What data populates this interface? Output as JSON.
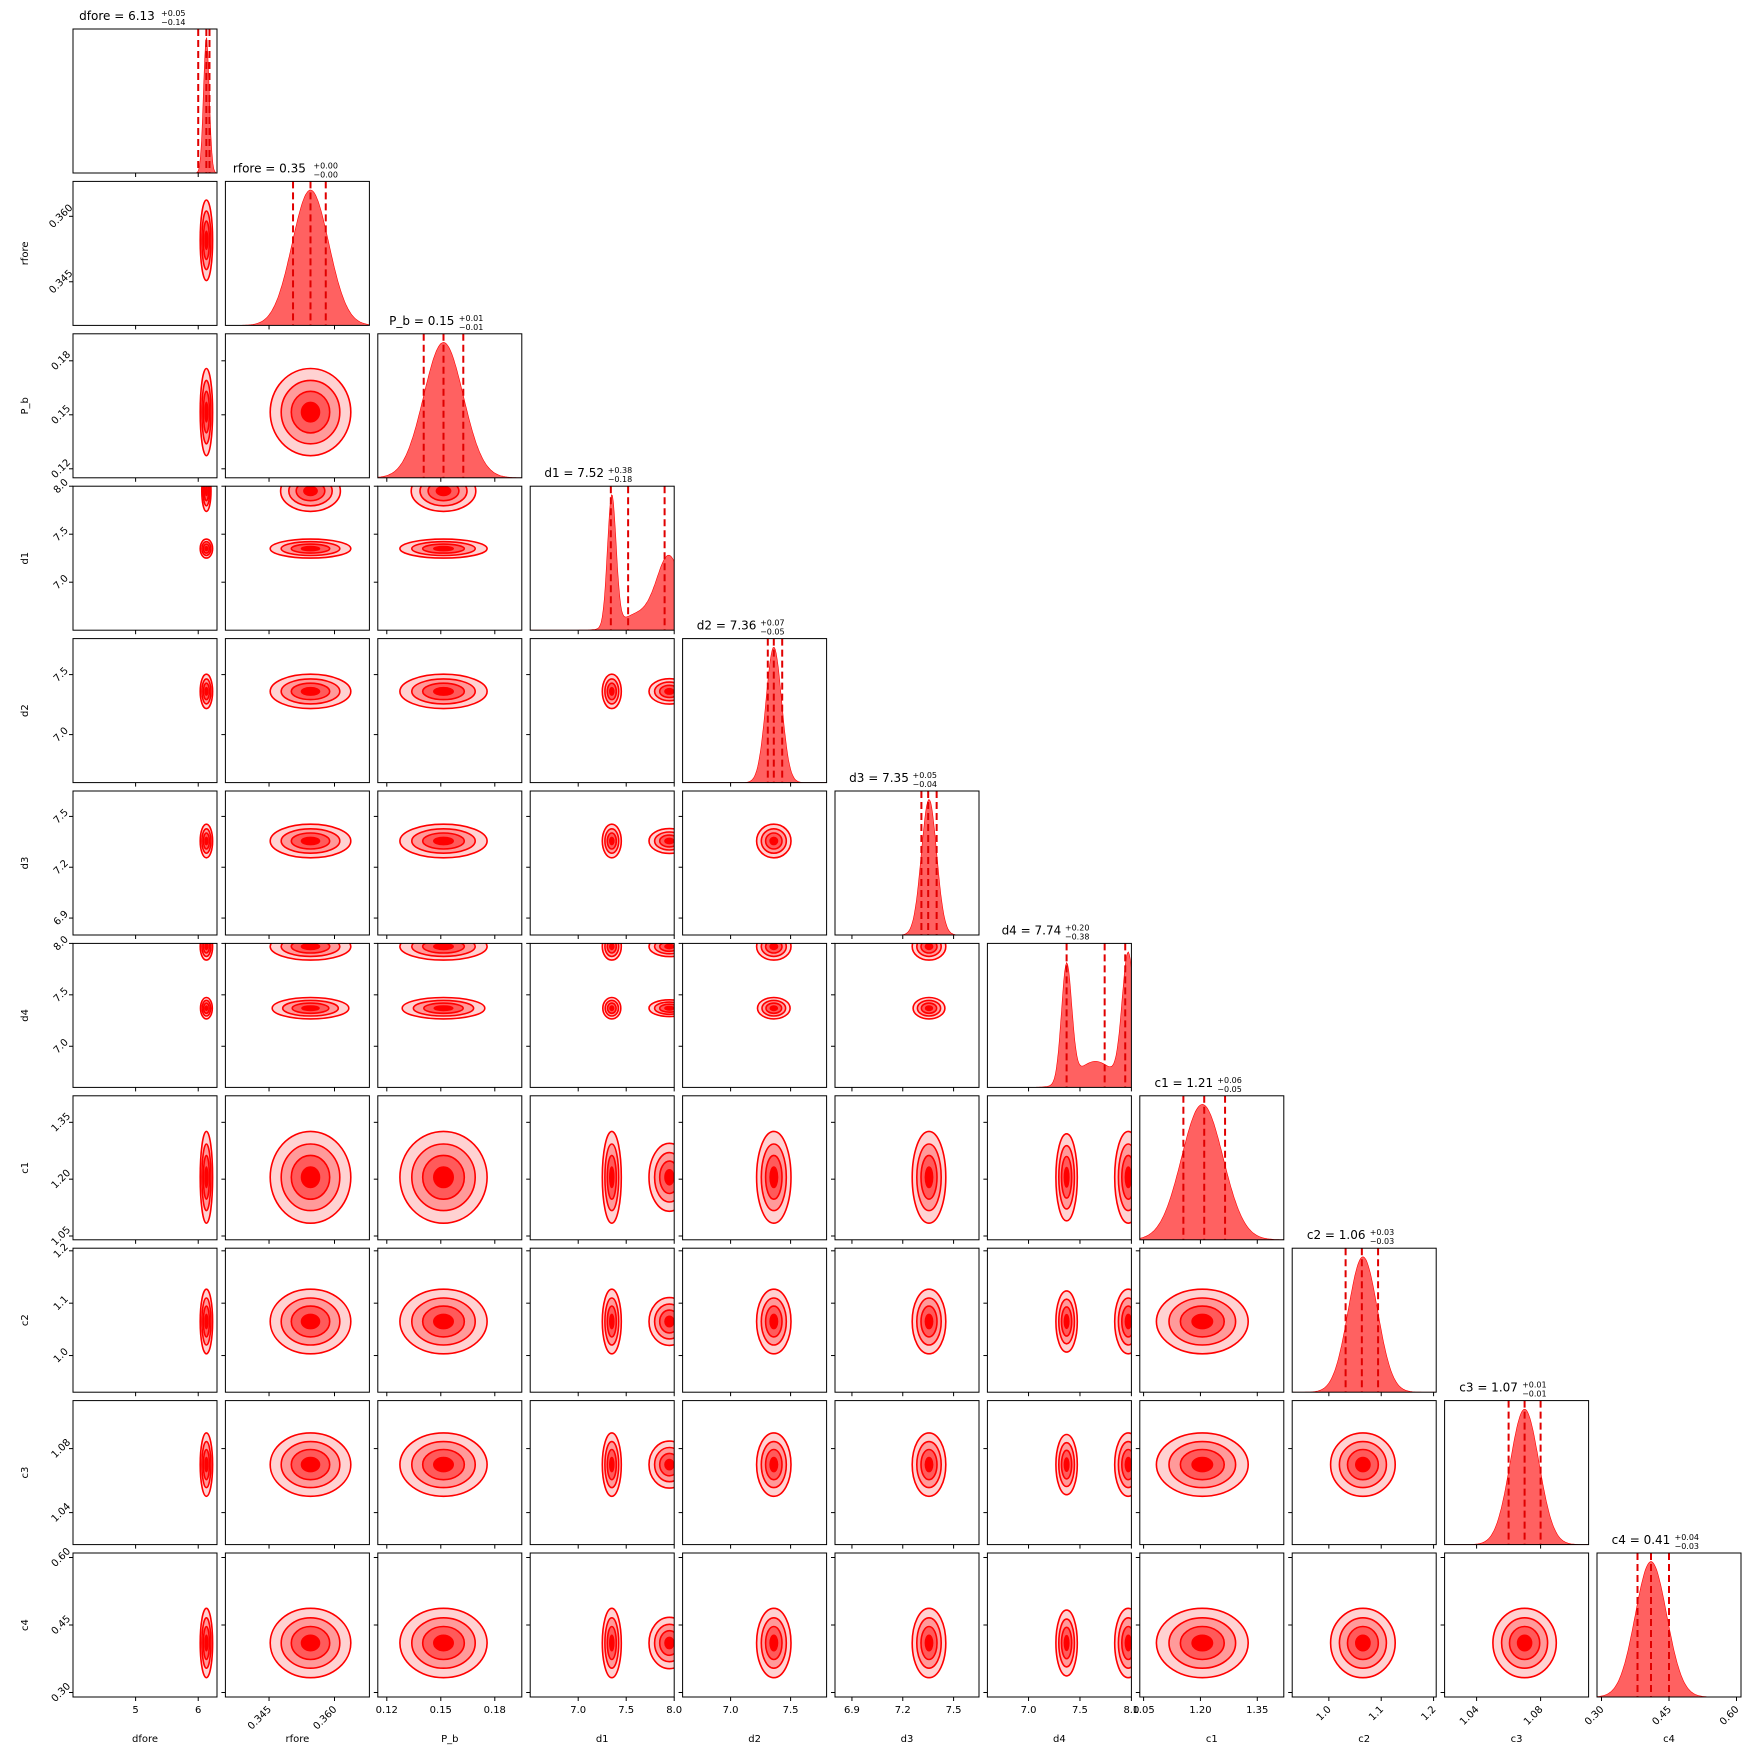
{
  "chart_data": {
    "type": "corner",
    "color": "#ff0000",
    "contour_fills": [
      "#ffd2d2",
      "#ff9a9a",
      "#ff5a5a",
      "#ff0000"
    ],
    "quantile_line_color": "#e00000",
    "parameters": [
      {
        "name": "dfore",
        "label": "dfore",
        "range": [
          4,
          6.3
        ],
        "ticks": [
          {
            "v": 5,
            "t": "5"
          },
          {
            "v": 6,
            "t": "6"
          }
        ],
        "rotate": false,
        "median": 6.13,
        "plus": "0.05",
        "minus": "0.14",
        "title_main": "dfore = 6.13",
        "sup": "+0.05",
        "sub": "−0.14",
        "modes": [
          {
            "c": 6.13,
            "s": 0.045,
            "w": 1
          }
        ],
        "q": [
          6.0,
          6.13,
          6.18
        ]
      },
      {
        "name": "rfore",
        "label": "rfore",
        "range": [
          0.335,
          0.368
        ],
        "ticks": [
          {
            "v": 0.345,
            "t": "0.345"
          },
          {
            "v": 0.36,
            "t": "0.360"
          }
        ],
        "rotate": true,
        "median": 0.35,
        "plus": "0.00",
        "minus": "-0.00",
        "title_main": "rfore = 0.35",
        "sup": "+0.00",
        "sub": "−0.00",
        "modes": [
          {
            "c": 0.3545,
            "s": 0.0042,
            "w": 1
          }
        ],
        "q": [
          0.3505,
          0.3545,
          0.358
        ]
      },
      {
        "name": "P_b",
        "label": "P_b",
        "range": [
          0.115,
          0.195
        ],
        "ticks": [
          {
            "v": 0.12,
            "t": "0.12"
          },
          {
            "v": 0.15,
            "t": "0.15"
          },
          {
            "v": 0.18,
            "t": "0.18"
          }
        ],
        "rotate": false,
        "median": 0.15,
        "plus": "0.01",
        "minus": "-0.01",
        "title_main": "P_b = 0.15",
        "sup": "+0.01",
        "sub": "−0.01",
        "modes": [
          {
            "c": 0.1515,
            "s": 0.011,
            "w": 1
          }
        ],
        "q": [
          0.1405,
          0.1515,
          0.1625
        ]
      },
      {
        "name": "d1",
        "label": "d1",
        "range": [
          6.5,
          8.0
        ],
        "ticks": [
          {
            "v": 7.0,
            "t": "7.0"
          },
          {
            "v": 7.5,
            "t": "7.5"
          },
          {
            "v": 8.0,
            "t": "8.0"
          }
        ],
        "rotate": false,
        "median": 7.52,
        "plus": "0.38",
        "minus": "-0.18",
        "title_main": "d1 = 7.52",
        "sup": "+0.38",
        "sub": "−0.18",
        "modes": [
          {
            "c": 7.35,
            "s": 0.045,
            "w": 1.0
          },
          {
            "c": 7.95,
            "s": 0.13,
            "w": 0.55
          },
          {
            "c": 7.62,
            "s": 0.18,
            "w": 0.12
          }
        ],
        "q": [
          7.34,
          7.52,
          7.9
        ]
      },
      {
        "name": "d2",
        "label": "d2",
        "range": [
          6.6,
          7.8
        ],
        "ticks": [
          {
            "v": 7.0,
            "t": "7.0"
          },
          {
            "v": 7.5,
            "t": "7.5"
          }
        ],
        "rotate": false,
        "median": 7.36,
        "plus": "0.07",
        "minus": "-0.05",
        "title_main": "d2 = 7.36",
        "sup": "+0.07",
        "sub": "−0.05",
        "modes": [
          {
            "c": 7.36,
            "s": 0.065,
            "w": 1
          }
        ],
        "q": [
          7.31,
          7.36,
          7.43
        ]
      },
      {
        "name": "d3",
        "label": "d3",
        "range": [
          6.8,
          7.65
        ],
        "ticks": [
          {
            "v": 6.9,
            "t": "6.9"
          },
          {
            "v": 7.2,
            "t": "7.2"
          },
          {
            "v": 7.5,
            "t": "7.5"
          }
        ],
        "rotate": false,
        "median": 7.35,
        "plus": "0.05",
        "minus": "-0.04",
        "title_main": "d3 = 7.35",
        "sup": "+0.05",
        "sub": "−0.04",
        "modes": [
          {
            "c": 7.355,
            "s": 0.045,
            "w": 1
          }
        ],
        "q": [
          7.31,
          7.35,
          7.4
        ]
      },
      {
        "name": "d4",
        "label": "d4",
        "range": [
          6.6,
          8.0
        ],
        "ticks": [
          {
            "v": 7.0,
            "t": "7.0"
          },
          {
            "v": 7.5,
            "t": "7.5"
          },
          {
            "v": 8.0,
            "t": "8.0"
          }
        ],
        "rotate": false,
        "median": 7.74,
        "plus": "0.20",
        "minus": "-0.38",
        "title_main": "d4 = 7.74",
        "sup": "+0.20",
        "sub": "−0.38",
        "modes": [
          {
            "c": 7.37,
            "s": 0.05,
            "w": 0.9
          },
          {
            "c": 7.97,
            "s": 0.06,
            "w": 1.0
          },
          {
            "c": 7.65,
            "s": 0.18,
            "w": 0.2
          }
        ],
        "q": [
          7.37,
          7.74,
          7.94
        ]
      },
      {
        "name": "c1",
        "label": "c1",
        "range": [
          1.04,
          1.42
        ],
        "ticks": [
          {
            "v": 1.05,
            "t": "1.05"
          },
          {
            "v": 1.2,
            "t": "1.20"
          },
          {
            "v": 1.35,
            "t": "1.35"
          }
        ],
        "rotate": false,
        "median": 1.21,
        "plus": "0.06",
        "minus": "-0.05",
        "title_main": "c1 = 1.21",
        "sup": "+0.06",
        "sub": "−0.05",
        "modes": [
          {
            "c": 1.205,
            "s": 0.055,
            "w": 1
          }
        ],
        "q": [
          1.155,
          1.21,
          1.265
        ]
      },
      {
        "name": "c2",
        "label": "c2",
        "range": [
          0.93,
          1.205
        ],
        "ticks": [
          {
            "v": 1.0,
            "t": "1.0"
          },
          {
            "v": 1.1,
            "t": "1.1"
          },
          {
            "v": 1.2,
            "t": "1.2"
          }
        ],
        "rotate": true,
        "median": 1.06,
        "plus": "0.03",
        "minus": "-0.03",
        "title_main": "c2 = 1.06",
        "sup": "+0.03",
        "sub": "−0.03",
        "modes": [
          {
            "c": 1.065,
            "s": 0.028,
            "w": 1
          }
        ],
        "q": [
          1.032,
          1.063,
          1.094
        ]
      },
      {
        "name": "c3",
        "label": "c3",
        "range": [
          1.02,
          1.11
        ],
        "ticks": [
          {
            "v": 1.04,
            "t": "1.04"
          },
          {
            "v": 1.08,
            "t": "1.08"
          }
        ],
        "rotate": true,
        "median": 1.07,
        "plus": "0.01",
        "minus": "-0.01",
        "title_main": "c3 = 1.07",
        "sup": "+0.01",
        "sub": "−0.01",
        "modes": [
          {
            "c": 1.07,
            "s": 0.009,
            "w": 1
          }
        ],
        "q": [
          1.06,
          1.07,
          1.08
        ]
      },
      {
        "name": "c4",
        "label": "c4",
        "range": [
          0.29,
          0.61
        ],
        "ticks": [
          {
            "v": 0.3,
            "t": "0.30"
          },
          {
            "v": 0.45,
            "t": "0.45"
          },
          {
            "v": 0.6,
            "t": "0.60"
          }
        ],
        "rotate": true,
        "median": 0.41,
        "plus": "0.04",
        "minus": "-0.03",
        "title_main": "c4 = 0.41",
        "sup": "+0.04",
        "sub": "−0.03",
        "modes": [
          {
            "c": 0.41,
            "s": 0.035,
            "w": 1
          }
        ],
        "q": [
          0.38,
          0.41,
          0.45
        ]
      }
    ]
  }
}
